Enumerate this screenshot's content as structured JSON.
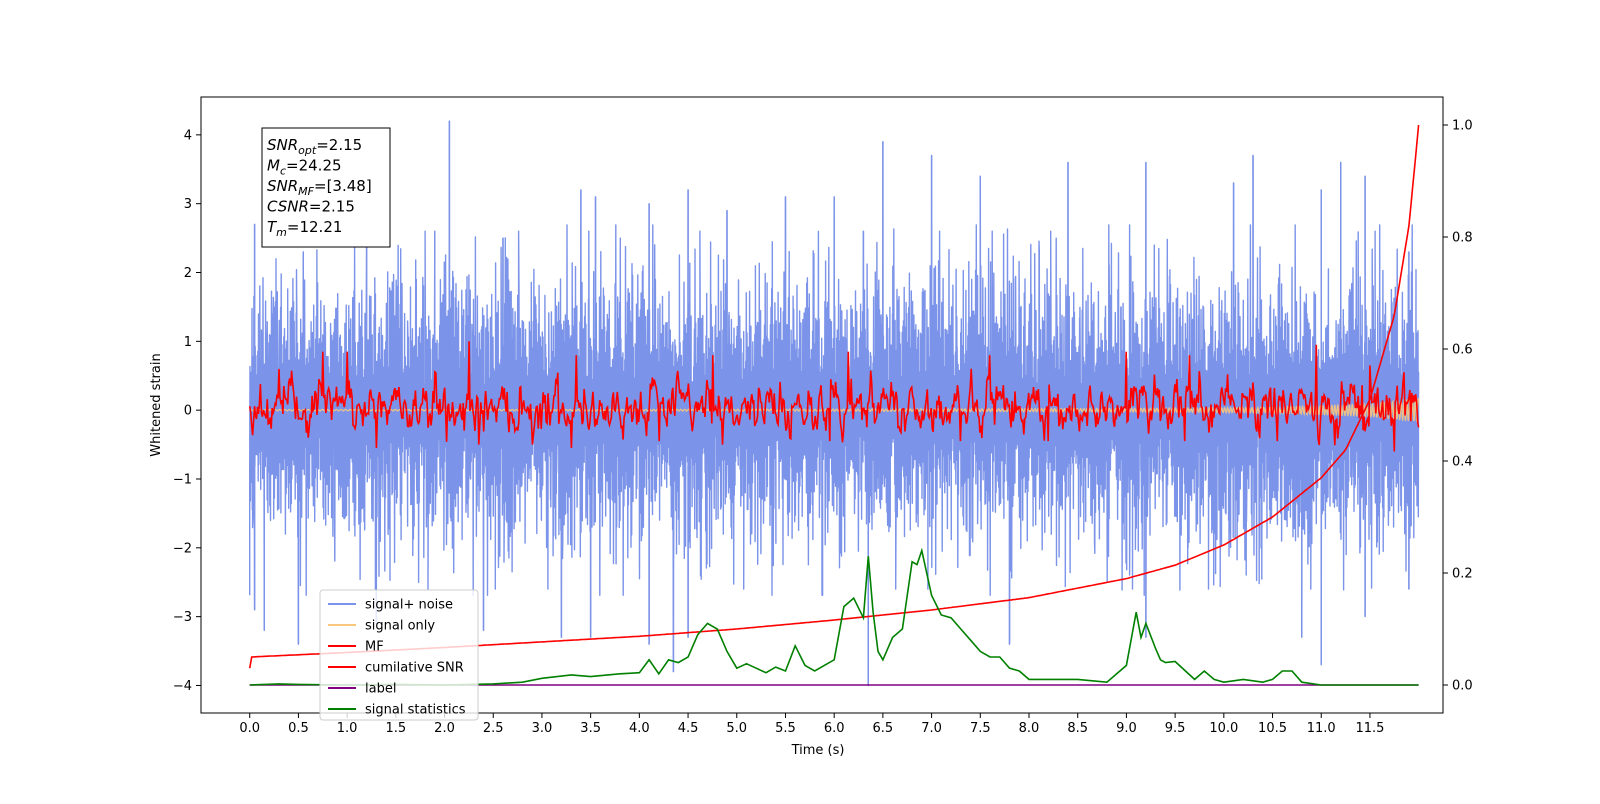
{
  "chart_data": {
    "type": "line",
    "xlabel": "Time (s)",
    "ylabel": "Whitened strain",
    "xlim": [
      -0.5,
      12.25
    ],
    "ylim": [
      -4.4,
      4.55
    ],
    "ylim_right": [
      -0.05,
      1.05
    ],
    "x_ticks": [
      0.0,
      0.5,
      1.0,
      1.5,
      2.0,
      2.5,
      3.0,
      3.5,
      4.0,
      4.5,
      5.0,
      5.5,
      6.0,
      6.5,
      7.0,
      7.5,
      8.0,
      8.5,
      9.0,
      9.5,
      10.0,
      10.5,
      11.0,
      11.5
    ],
    "x_tick_labels": [
      "0.0",
      "0.5",
      "1.0",
      "1.5",
      "2.0",
      "2.5",
      "3.0",
      "3.5",
      "4.0",
      "4.5",
      "5.0",
      "5.5",
      "6.0",
      "6.5",
      "7.0",
      "7.5",
      "8.0",
      "8.5",
      "9.0",
      "9.5",
      "10.0",
      "10.5",
      "11.0",
      "11.5"
    ],
    "y_ticks": [
      -4,
      -3,
      -2,
      -1,
      0,
      1,
      2,
      3,
      4
    ],
    "y_tick_labels": [
      "−4",
      "−3",
      "−2",
      "−1",
      "0",
      "1",
      "2",
      "3",
      "4"
    ],
    "y_right_ticks": [
      0.0,
      0.2,
      0.4,
      0.6,
      0.8,
      1.0
    ],
    "y_right_tick_labels": [
      "0.0",
      "0.2",
      "0.4",
      "0.6",
      "0.8",
      "1.0"
    ],
    "legend_position": "lower-left",
    "legend": [
      {
        "label": "signal+ noise",
        "color": "#7b93e8"
      },
      {
        "label": "signal only",
        "color": "#f7c77e"
      },
      {
        "label": "MF",
        "color": "#ff0000"
      },
      {
        "label": "cumilative SNR",
        "color": "#ff0000"
      },
      {
        "label": "label",
        "color": "#800080"
      },
      {
        "label": "signal statistics",
        "color": "#008000"
      }
    ],
    "info_box": [
      {
        "base": "SNR",
        "sub": "opt",
        "value": "=2.15"
      },
      {
        "base": "M",
        "sub": "c",
        "value": "=24.25"
      },
      {
        "base": "SNR",
        "sub": "MF",
        "value": "=[3.48]"
      },
      {
        "base": "CSNR",
        "sub": "",
        "value": "=2.15"
      },
      {
        "base": "T",
        "sub": "m",
        "value": "=12.21"
      }
    ],
    "series": [
      {
        "name": "signal+ noise",
        "axis": "left",
        "color": "#7b93e8",
        "x_range": [
          0.0,
          12.0
        ],
        "envelope_upper": 2.6,
        "envelope_lower": -2.6,
        "peaks_upper": [
          [
            0.05,
            2.7
          ],
          [
            0.55,
            2.3
          ],
          [
            1.2,
            2.4
          ],
          [
            1.9,
            2.6
          ],
          [
            2.05,
            4.2
          ],
          [
            2.6,
            2.5
          ],
          [
            3.4,
            3.2
          ],
          [
            3.55,
            3.1
          ],
          [
            4.1,
            3.0
          ],
          [
            4.5,
            3.2
          ],
          [
            4.9,
            2.9
          ],
          [
            5.5,
            3.1
          ],
          [
            6.0,
            3.1
          ],
          [
            6.3,
            2.6
          ],
          [
            6.5,
            3.9
          ],
          [
            7.0,
            3.7
          ],
          [
            7.5,
            3.4
          ],
          [
            8.4,
            3.6
          ],
          [
            9.2,
            3.6
          ],
          [
            10.1,
            3.3
          ],
          [
            10.3,
            3.7
          ],
          [
            11.0,
            3.2
          ],
          [
            11.2,
            3.6
          ],
          [
            11.45,
            3.4
          ],
          [
            11.9,
            2.3
          ]
        ],
        "peaks_lower": [
          [
            0.05,
            -2.9
          ],
          [
            0.15,
            -3.2
          ],
          [
            0.5,
            -3.4
          ],
          [
            1.3,
            -3.1
          ],
          [
            2.4,
            -3.2
          ],
          [
            3.2,
            -3.3
          ],
          [
            3.5,
            -3.3
          ],
          [
            4.1,
            -3.4
          ],
          [
            4.35,
            -3.8
          ],
          [
            4.5,
            -3.3
          ],
          [
            6.35,
            -4.0
          ],
          [
            7.8,
            -3.4
          ],
          [
            9.2,
            -3.3
          ],
          [
            10.8,
            -3.3
          ],
          [
            11.0,
            -3.7
          ],
          [
            11.45,
            -3.0
          ],
          [
            11.9,
            -2.6
          ]
        ]
      },
      {
        "name": "signal only",
        "axis": "left",
        "color": "#f7c77e",
        "x": [
          0.0,
          3.0,
          6.0,
          9.0,
          10.5,
          11.5,
          12.0
        ],
        "amplitude": [
          0.01,
          0.01,
          0.015,
          0.025,
          0.04,
          0.1,
          0.18
        ]
      },
      {
        "name": "MF",
        "axis": "left",
        "color": "#ff0000",
        "x_range": [
          0.0,
          12.0
        ],
        "band": [
          -0.6,
          0.9
        ],
        "peaks": [
          [
            0.3,
            0.6
          ],
          [
            0.75,
            0.85
          ],
          [
            1.0,
            0.85
          ],
          [
            2.25,
            1.0
          ],
          [
            3.35,
            0.8
          ],
          [
            4.75,
            0.8
          ],
          [
            6.15,
            0.85
          ],
          [
            7.6,
            0.8
          ],
          [
            9.0,
            0.85
          ],
          [
            9.65,
            0.8
          ],
          [
            10.95,
            0.95
          ],
          [
            11.5,
            0.65
          ],
          [
            11.85,
            0.55
          ]
        ],
        "troughs": [
          [
            0.6,
            -0.4
          ],
          [
            1.3,
            -0.55
          ],
          [
            2.35,
            -0.5
          ],
          [
            2.9,
            -0.5
          ],
          [
            3.3,
            -0.55
          ],
          [
            4.2,
            -0.45
          ],
          [
            4.85,
            -0.5
          ],
          [
            5.95,
            -0.45
          ],
          [
            7.3,
            -0.45
          ],
          [
            8.2,
            -0.45
          ],
          [
            9.6,
            -0.45
          ],
          [
            10.55,
            -0.45
          ],
          [
            11.75,
            -0.6
          ],
          [
            12.0,
            -0.25
          ]
        ]
      },
      {
        "name": "cumilative SNR",
        "axis": "right",
        "color": "#ff0000",
        "x": [
          0.0,
          0.01,
          1.0,
          2.0,
          3.0,
          4.0,
          5.0,
          6.0,
          7.0,
          8.0,
          9.0,
          9.5,
          10.0,
          10.5,
          11.0,
          11.25,
          11.5,
          11.75,
          11.9,
          12.0
        ],
        "values": [
          0.03,
          0.05,
          0.058,
          0.067,
          0.077,
          0.087,
          0.1,
          0.116,
          0.134,
          0.156,
          0.19,
          0.214,
          0.25,
          0.3,
          0.37,
          0.42,
          0.51,
          0.66,
          0.82,
          1.0
        ]
      },
      {
        "name": "label",
        "axis": "right",
        "color": "#800080",
        "x": [
          0.0,
          12.0
        ],
        "values": [
          0.0,
          0.0
        ]
      },
      {
        "name": "signal statistics",
        "axis": "right",
        "color": "#008000",
        "x": [
          0.0,
          0.3,
          0.5,
          1.0,
          1.5,
          2.0,
          2.5,
          2.8,
          3.0,
          3.3,
          3.5,
          3.8,
          4.0,
          4.1,
          4.2,
          4.3,
          4.4,
          4.5,
          4.6,
          4.7,
          4.8,
          4.9,
          5.0,
          5.1,
          5.2,
          5.3,
          5.4,
          5.5,
          5.6,
          5.7,
          5.8,
          6.0,
          6.1,
          6.2,
          6.3,
          6.35,
          6.4,
          6.45,
          6.5,
          6.6,
          6.7,
          6.8,
          6.85,
          6.9,
          6.95,
          7.0,
          7.1,
          7.2,
          7.3,
          7.4,
          7.5,
          7.6,
          7.7,
          7.8,
          7.9,
          8.0,
          8.5,
          8.8,
          9.0,
          9.1,
          9.15,
          9.2,
          9.3,
          9.35,
          9.4,
          9.5,
          9.7,
          9.8,
          9.9,
          10.0,
          10.2,
          10.4,
          10.5,
          10.6,
          10.7,
          10.8,
          11.0,
          12.0
        ],
        "values": [
          0.0,
          0.002,
          0.001,
          0.0,
          0.001,
          0.0,
          0.002,
          0.005,
          0.012,
          0.018,
          0.015,
          0.02,
          0.022,
          0.045,
          0.02,
          0.045,
          0.04,
          0.05,
          0.09,
          0.11,
          0.1,
          0.06,
          0.03,
          0.038,
          0.03,
          0.022,
          0.032,
          0.025,
          0.07,
          0.035,
          0.025,
          0.045,
          0.14,
          0.155,
          0.12,
          0.23,
          0.13,
          0.06,
          0.045,
          0.085,
          0.1,
          0.22,
          0.215,
          0.24,
          0.2,
          0.16,
          0.125,
          0.12,
          0.1,
          0.08,
          0.06,
          0.05,
          0.05,
          0.03,
          0.025,
          0.01,
          0.01,
          0.005,
          0.035,
          0.13,
          0.085,
          0.11,
          0.065,
          0.045,
          0.04,
          0.042,
          0.01,
          0.025,
          0.01,
          0.005,
          0.01,
          0.005,
          0.01,
          0.025,
          0.025,
          0.005,
          0.0,
          0.0
        ]
      }
    ]
  }
}
